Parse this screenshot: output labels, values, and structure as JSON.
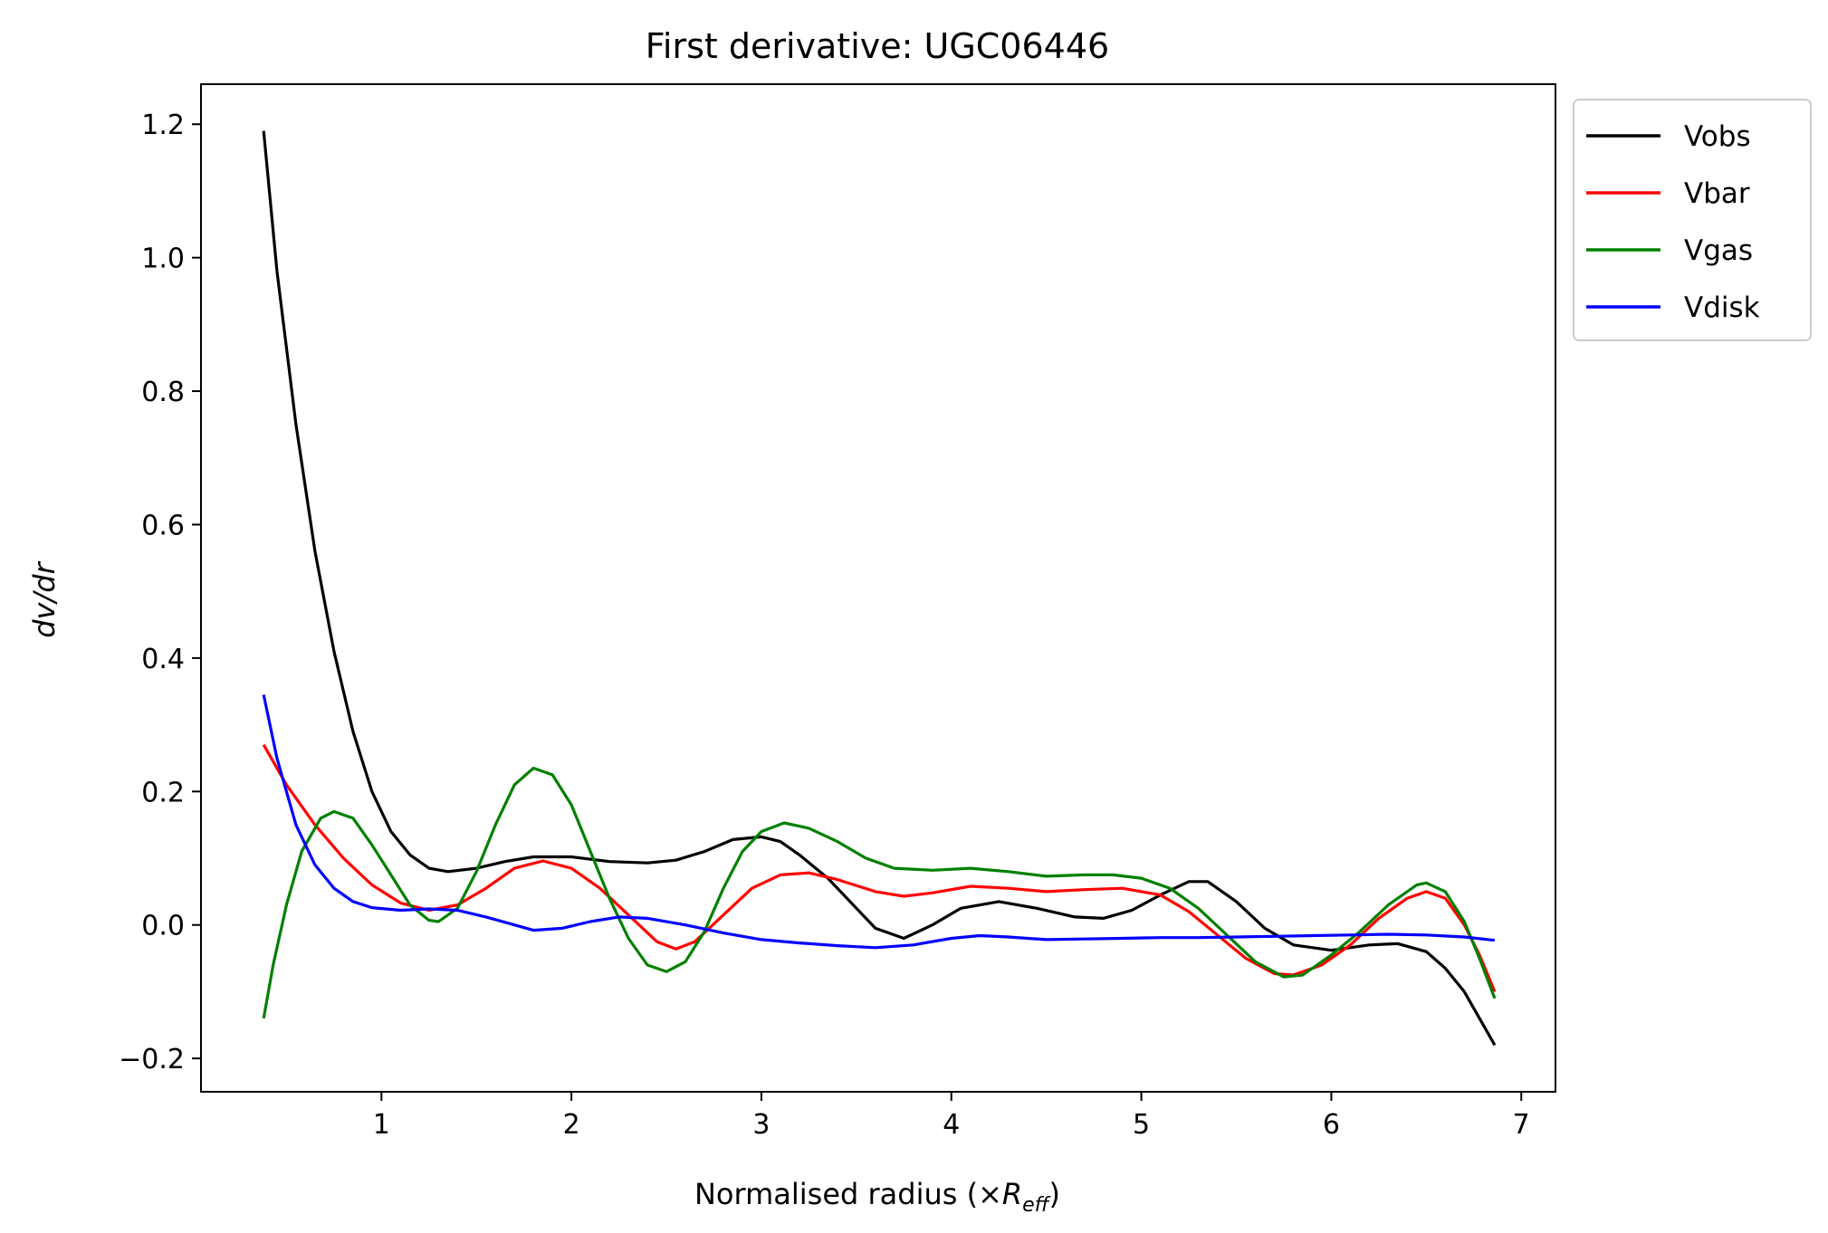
{
  "chart_data": {
    "type": "line",
    "title": "First derivative: UGC06446",
    "xlabel": "Normalised radius (×R_eff)",
    "xlabel_parts": {
      "prefix": "Normalised radius (×",
      "var": "R",
      "sub": "eff",
      "suffix": ")"
    },
    "ylabel": "dv/dr",
    "xlim": [
      0.05,
      7.18
    ],
    "ylim": [
      -0.25,
      1.26
    ],
    "xticks": [
      1,
      2,
      3,
      4,
      5,
      6,
      7
    ],
    "xtick_labels": [
      "1",
      "2",
      "3",
      "4",
      "5",
      "6",
      "7"
    ],
    "yticks": [
      -0.2,
      0.0,
      0.2,
      0.4,
      0.6,
      0.8,
      1.0,
      1.2
    ],
    "ytick_labels": [
      "−0.2",
      "0.0",
      "0.2",
      "0.4",
      "0.6",
      "0.8",
      "1.0",
      "1.2"
    ],
    "grid": false,
    "legend_position": "outside-top-right",
    "series": [
      {
        "name": "Vobs",
        "color": "#000000",
        "points": [
          [
            0.38,
            1.19
          ],
          [
            0.45,
            0.98
          ],
          [
            0.55,
            0.75
          ],
          [
            0.65,
            0.56
          ],
          [
            0.75,
            0.41
          ],
          [
            0.85,
            0.29
          ],
          [
            0.95,
            0.2
          ],
          [
            1.05,
            0.14
          ],
          [
            1.15,
            0.105
          ],
          [
            1.25,
            0.085
          ],
          [
            1.35,
            0.08
          ],
          [
            1.5,
            0.085
          ],
          [
            1.65,
            0.095
          ],
          [
            1.8,
            0.102
          ],
          [
            2.0,
            0.102
          ],
          [
            2.2,
            0.095
          ],
          [
            2.4,
            0.093
          ],
          [
            2.55,
            0.097
          ],
          [
            2.7,
            0.11
          ],
          [
            2.85,
            0.128
          ],
          [
            3.0,
            0.132
          ],
          [
            3.1,
            0.125
          ],
          [
            3.2,
            0.105
          ],
          [
            3.35,
            0.07
          ],
          [
            3.5,
            0.025
          ],
          [
            3.6,
            -0.005
          ],
          [
            3.75,
            -0.02
          ],
          [
            3.9,
            0.0
          ],
          [
            4.05,
            0.025
          ],
          [
            4.25,
            0.035
          ],
          [
            4.45,
            0.025
          ],
          [
            4.65,
            0.012
          ],
          [
            4.8,
            0.01
          ],
          [
            4.95,
            0.022
          ],
          [
            5.1,
            0.045
          ],
          [
            5.25,
            0.065
          ],
          [
            5.35,
            0.065
          ],
          [
            5.5,
            0.035
          ],
          [
            5.65,
            -0.005
          ],
          [
            5.8,
            -0.03
          ],
          [
            6.0,
            -0.038
          ],
          [
            6.2,
            -0.03
          ],
          [
            6.35,
            -0.028
          ],
          [
            6.5,
            -0.04
          ],
          [
            6.6,
            -0.065
          ],
          [
            6.7,
            -0.1
          ],
          [
            6.78,
            -0.14
          ],
          [
            6.86,
            -0.18
          ]
        ]
      },
      {
        "name": "Vbar",
        "color": "#ff0000",
        "points": [
          [
            0.38,
            0.27
          ],
          [
            0.5,
            0.21
          ],
          [
            0.65,
            0.15
          ],
          [
            0.8,
            0.1
          ],
          [
            0.95,
            0.06
          ],
          [
            1.1,
            0.033
          ],
          [
            1.25,
            0.022
          ],
          [
            1.4,
            0.03
          ],
          [
            1.55,
            0.055
          ],
          [
            1.7,
            0.085
          ],
          [
            1.85,
            0.096
          ],
          [
            2.0,
            0.085
          ],
          [
            2.15,
            0.055
          ],
          [
            2.3,
            0.015
          ],
          [
            2.45,
            -0.025
          ],
          [
            2.55,
            -0.036
          ],
          [
            2.65,
            -0.025
          ],
          [
            2.8,
            0.015
          ],
          [
            2.95,
            0.055
          ],
          [
            3.1,
            0.075
          ],
          [
            3.25,
            0.078
          ],
          [
            3.4,
            0.068
          ],
          [
            3.6,
            0.05
          ],
          [
            3.75,
            0.043
          ],
          [
            3.9,
            0.048
          ],
          [
            4.1,
            0.058
          ],
          [
            4.3,
            0.055
          ],
          [
            4.5,
            0.05
          ],
          [
            4.7,
            0.053
          ],
          [
            4.9,
            0.055
          ],
          [
            5.1,
            0.045
          ],
          [
            5.25,
            0.02
          ],
          [
            5.4,
            -0.015
          ],
          [
            5.55,
            -0.05
          ],
          [
            5.7,
            -0.073
          ],
          [
            5.8,
            -0.075
          ],
          [
            5.95,
            -0.06
          ],
          [
            6.1,
            -0.03
          ],
          [
            6.25,
            0.01
          ],
          [
            6.4,
            0.04
          ],
          [
            6.5,
            0.05
          ],
          [
            6.6,
            0.04
          ],
          [
            6.7,
            0.0
          ],
          [
            6.78,
            -0.045
          ],
          [
            6.86,
            -0.1
          ]
        ]
      },
      {
        "name": "Vgas",
        "color": "#008000",
        "points": [
          [
            0.38,
            -0.14
          ],
          [
            0.43,
            -0.06
          ],
          [
            0.5,
            0.03
          ],
          [
            0.58,
            0.11
          ],
          [
            0.68,
            0.16
          ],
          [
            0.75,
            0.17
          ],
          [
            0.85,
            0.16
          ],
          [
            0.95,
            0.12
          ],
          [
            1.05,
            0.075
          ],
          [
            1.15,
            0.03
          ],
          [
            1.25,
            0.007
          ],
          [
            1.3,
            0.005
          ],
          [
            1.4,
            0.025
          ],
          [
            1.5,
            0.08
          ],
          [
            1.6,
            0.15
          ],
          [
            1.7,
            0.21
          ],
          [
            1.8,
            0.235
          ],
          [
            1.9,
            0.225
          ],
          [
            2.0,
            0.18
          ],
          [
            2.1,
            0.11
          ],
          [
            2.2,
            0.04
          ],
          [
            2.3,
            -0.02
          ],
          [
            2.4,
            -0.06
          ],
          [
            2.5,
            -0.07
          ],
          [
            2.6,
            -0.055
          ],
          [
            2.7,
            -0.01
          ],
          [
            2.8,
            0.055
          ],
          [
            2.9,
            0.11
          ],
          [
            3.0,
            0.14
          ],
          [
            3.12,
            0.153
          ],
          [
            3.25,
            0.145
          ],
          [
            3.4,
            0.125
          ],
          [
            3.55,
            0.1
          ],
          [
            3.7,
            0.085
          ],
          [
            3.9,
            0.082
          ],
          [
            4.1,
            0.085
          ],
          [
            4.3,
            0.08
          ],
          [
            4.5,
            0.073
          ],
          [
            4.7,
            0.075
          ],
          [
            4.85,
            0.075
          ],
          [
            5.0,
            0.07
          ],
          [
            5.15,
            0.055
          ],
          [
            5.3,
            0.025
          ],
          [
            5.45,
            -0.015
          ],
          [
            5.6,
            -0.055
          ],
          [
            5.75,
            -0.078
          ],
          [
            5.85,
            -0.075
          ],
          [
            6.0,
            -0.045
          ],
          [
            6.15,
            -0.01
          ],
          [
            6.3,
            0.03
          ],
          [
            6.45,
            0.06
          ],
          [
            6.5,
            0.063
          ],
          [
            6.6,
            0.05
          ],
          [
            6.7,
            0.005
          ],
          [
            6.78,
            -0.05
          ],
          [
            6.86,
            -0.11
          ]
        ]
      },
      {
        "name": "Vdisk",
        "color": "#0000ff",
        "points": [
          [
            0.38,
            0.345
          ],
          [
            0.45,
            0.25
          ],
          [
            0.55,
            0.15
          ],
          [
            0.65,
            0.09
          ],
          [
            0.75,
            0.055
          ],
          [
            0.85,
            0.035
          ],
          [
            0.95,
            0.026
          ],
          [
            1.1,
            0.022
          ],
          [
            1.25,
            0.024
          ],
          [
            1.4,
            0.022
          ],
          [
            1.55,
            0.012
          ],
          [
            1.7,
            0.0
          ],
          [
            1.8,
            -0.008
          ],
          [
            1.95,
            -0.005
          ],
          [
            2.1,
            0.005
          ],
          [
            2.25,
            0.012
          ],
          [
            2.4,
            0.01
          ],
          [
            2.6,
            0.0
          ],
          [
            2.8,
            -0.012
          ],
          [
            3.0,
            -0.022
          ],
          [
            3.2,
            -0.027
          ],
          [
            3.4,
            -0.031
          ],
          [
            3.6,
            -0.034
          ],
          [
            3.8,
            -0.03
          ],
          [
            4.0,
            -0.02
          ],
          [
            4.15,
            -0.016
          ],
          [
            4.3,
            -0.018
          ],
          [
            4.5,
            -0.022
          ],
          [
            4.7,
            -0.021
          ],
          [
            4.9,
            -0.02
          ],
          [
            5.1,
            -0.019
          ],
          [
            5.3,
            -0.019
          ],
          [
            5.5,
            -0.018
          ],
          [
            5.7,
            -0.017
          ],
          [
            5.9,
            -0.016
          ],
          [
            6.1,
            -0.015
          ],
          [
            6.3,
            -0.014
          ],
          [
            6.5,
            -0.015
          ],
          [
            6.7,
            -0.018
          ],
          [
            6.86,
            -0.023
          ]
        ]
      }
    ]
  }
}
